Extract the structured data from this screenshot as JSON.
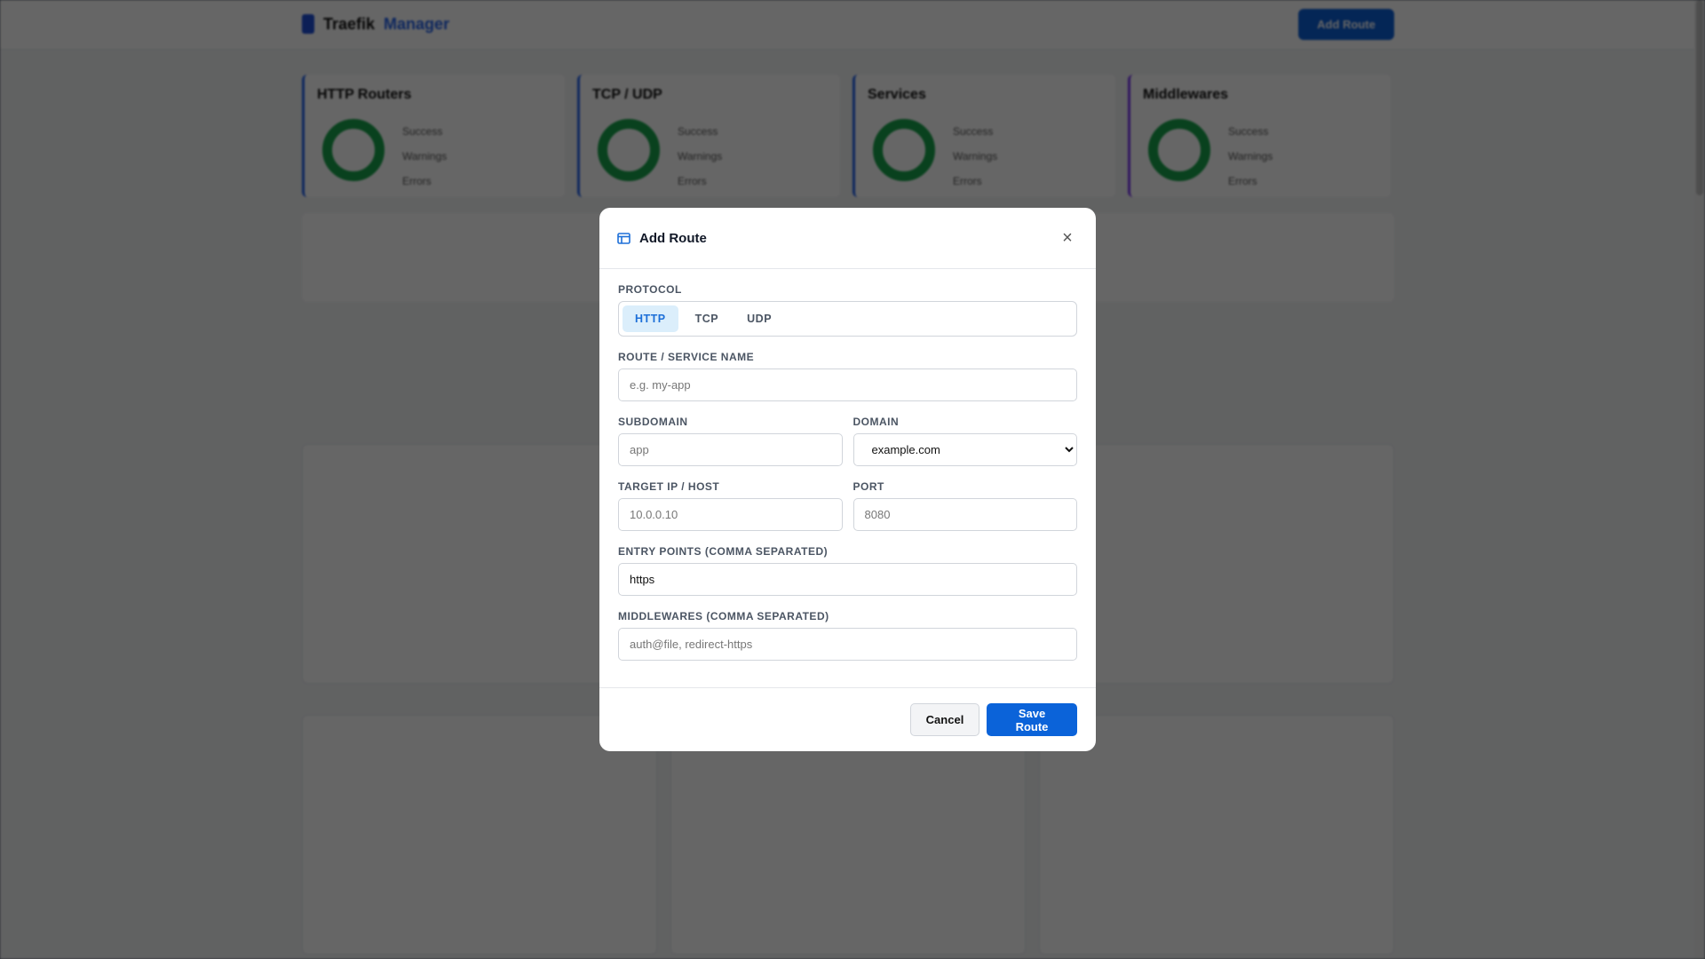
{
  "app": {
    "title_main": "Traefik",
    "title_accent": "Manager",
    "add_route_button": "Add Route"
  },
  "stats": [
    {
      "title": "HTTP Routers"
    },
    {
      "title": "TCP / UDP"
    },
    {
      "title": "Services"
    },
    {
      "title": "Middlewares"
    }
  ],
  "legend": {
    "success": "Success",
    "warnings": "Warnings",
    "errors": "Errors"
  },
  "colors": {
    "accent": "#0b63d9",
    "success": "#16a34a",
    "warning": "#f59e0b",
    "error": "#dc2626"
  },
  "modal": {
    "title": "Add Route",
    "icon": "layout-icon",
    "protocol_label": "PROTOCOL",
    "protocols": [
      "HTTP",
      "TCP",
      "UDP"
    ],
    "selected_protocol": "HTTP",
    "name_label": "ROUTE / SERVICE NAME",
    "name_placeholder": "e.g. my-app",
    "subdomain_label": "SUBDOMAIN",
    "subdomain_placeholder": "app",
    "domain_label": "DOMAIN",
    "domain_value": "example.com",
    "target_label": "TARGET IP / HOST",
    "target_placeholder": "10.0.0.10",
    "port_label": "PORT",
    "port_placeholder": "8080",
    "entry_label": "ENTRY POINTS (COMMA SEPARATED)",
    "entry_value": "https",
    "mw_label": "MIDDLEWARES (COMMA SEPARATED)",
    "mw_placeholder": "auth@file, redirect-https",
    "cancel": "Cancel",
    "save": "Save Route"
  }
}
